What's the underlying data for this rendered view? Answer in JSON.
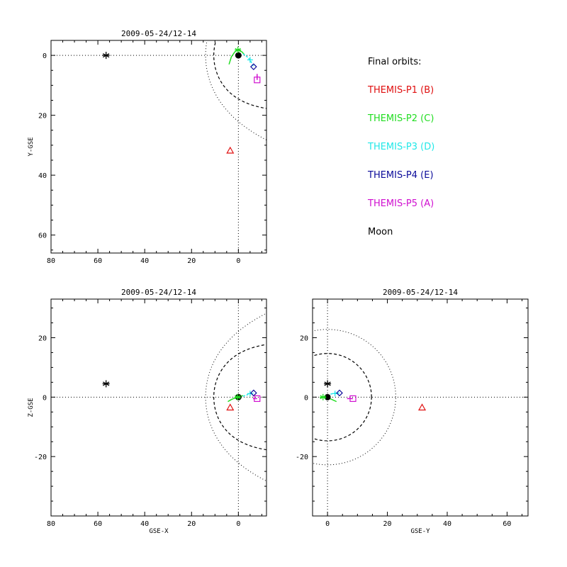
{
  "legend": {
    "heading": "Final orbits:",
    "items": [
      {
        "label": "THEMIS-P1 (B)",
        "color": "#e01010",
        "marker": "triangle"
      },
      {
        "label": "THEMIS-P2 (C)",
        "color": "#22dd22",
        "marker": "asterisk"
      },
      {
        "label": "THEMIS-P3 (D)",
        "color": "#22e8e8",
        "marker": "plus"
      },
      {
        "label": "THEMIS-P4 (E)",
        "color": "#0b0b9a",
        "marker": "diamond"
      },
      {
        "label": "THEMIS-P5 (A)",
        "color": "#d010d0",
        "marker": "square"
      },
      {
        "label": "Moon",
        "color": "#000000",
        "marker": "star"
      }
    ]
  },
  "chart_data": [
    {
      "type": "scatter",
      "panel": "top-left",
      "title": "2009-05-24/12-14",
      "xlabel": "",
      "ylabel": "Y-GSE",
      "xlim": [
        80,
        -12
      ],
      "ylim": [
        -5,
        66
      ],
      "y_reversed": true,
      "xticks": [
        80,
        60,
        40,
        20,
        0
      ],
      "xticklabels": [
        "80",
        "60",
        "40",
        "20",
        "0"
      ],
      "yticks": [
        0,
        20,
        40,
        60
      ],
      "yticklabels": [
        "0",
        "20",
        "40",
        "60"
      ],
      "earth": [
        0,
        0
      ],
      "crosshair": [
        0,
        0
      ],
      "magnetopause": {
        "standoff": 10.5,
        "flare": 0.47
      },
      "bow_shock": {
        "standoff": 14,
        "flare": 0.66
      },
      "points": [
        {
          "name": "THEMIS-P1 (B)",
          "x": 3.5,
          "y": 31.8
        },
        {
          "name": "THEMIS-P2 (C)",
          "x": 0.2,
          "y": -1.8
        },
        {
          "name": "THEMIS-P3 (D)",
          "x": -5,
          "y": 1.5
        },
        {
          "name": "THEMIS-P4 (E)",
          "x": -6.5,
          "y": 3.8
        },
        {
          "name": "THEMIS-P5 (A)",
          "x": -8,
          "y": 8.2
        },
        {
          "name": "Moon",
          "x": 56.5,
          "y": 0
        }
      ],
      "tracks": [
        {
          "name": "THEMIS-P2 (C)",
          "x": [
            4,
            3,
            1.5,
            0.2,
            -1.5,
            -2.6
          ],
          "y": [
            3,
            0.5,
            -1.2,
            -1.8,
            -1.2,
            -0.2
          ]
        },
        {
          "name": "THEMIS-P3 (D)",
          "x": [
            -2,
            -3.5,
            -5,
            -6.5
          ],
          "y": [
            -0.5,
            0.3,
            1.5,
            3.8
          ]
        },
        {
          "name": "THEMIS-P5 (A)",
          "x": [
            -8,
            -8,
            -8
          ],
          "y": [
            6.2,
            7.2,
            8.2
          ]
        }
      ]
    },
    {
      "type": "scatter",
      "panel": "bottom-left",
      "title": "2009-05-24/12-14",
      "xlabel": "GSE-X",
      "ylabel": "Z-GSE",
      "xlim": [
        80,
        -12
      ],
      "ylim": [
        -40,
        33
      ],
      "xticks": [
        80,
        60,
        40,
        20,
        0
      ],
      "xticklabels": [
        "80",
        "60",
        "40",
        "20",
        "0"
      ],
      "yticks": [
        -20,
        0,
        20
      ],
      "yticklabels": [
        "-20",
        "0",
        "20"
      ],
      "earth": [
        0,
        0
      ],
      "crosshair": [
        0,
        0
      ],
      "magnetopause": {
        "standoff": 10.5,
        "flare": 0.47
      },
      "bow_shock": {
        "standoff": 14,
        "flare": 0.66
      },
      "points": [
        {
          "name": "THEMIS-P1 (B)",
          "x": 3.5,
          "y": -3.5
        },
        {
          "name": "THEMIS-P2 (C)",
          "x": 0.3,
          "y": 0
        },
        {
          "name": "THEMIS-P3 (D)",
          "x": -5,
          "y": 1.2
        },
        {
          "name": "THEMIS-P4 (E)",
          "x": -6.5,
          "y": 1.4
        },
        {
          "name": "THEMIS-P5 (A)",
          "x": -8,
          "y": -0.5
        },
        {
          "name": "Moon",
          "x": 56.5,
          "y": 4.5
        }
      ],
      "tracks": [
        {
          "name": "THEMIS-P2 (C)",
          "x": [
            4.5,
            3,
            1.5,
            0.3,
            -1,
            -2
          ],
          "y": [
            -1.5,
            -0.8,
            -0.3,
            0,
            0.3,
            0.5
          ]
        },
        {
          "name": "THEMIS-P3 (D)",
          "x": [
            -2,
            -3.5,
            -5,
            -6.5
          ],
          "y": [
            0.3,
            0.7,
            1.2,
            1.4
          ]
        },
        {
          "name": "THEMIS-P5 (A)",
          "x": [
            -6.2,
            -7.2,
            -8
          ],
          "y": [
            -0.5,
            -0.5,
            -0.5
          ]
        }
      ]
    },
    {
      "type": "scatter",
      "panel": "bottom-right",
      "title": "2009-05-24/12-14",
      "xlabel": "GSE-Y",
      "ylabel": "",
      "xlim": [
        -5,
        67
      ],
      "ylim": [
        -40,
        33
      ],
      "xticks": [
        0,
        20,
        40,
        60
      ],
      "xticklabels": [
        "0",
        "20",
        "40",
        "60"
      ],
      "yticks": [
        -20,
        0,
        20
      ],
      "yticklabels": [
        "-20",
        "0",
        "20"
      ],
      "earth": [
        0,
        0
      ],
      "crosshair": [
        0,
        0
      ],
      "magnetopause_circle_radius": 14.7,
      "bow_shock_circle_radius": 22.8,
      "points": [
        {
          "name": "THEMIS-P1 (B)",
          "x": 31.6,
          "y": -3.5
        },
        {
          "name": "THEMIS-P2 (C)",
          "x": -1.5,
          "y": 0
        },
        {
          "name": "THEMIS-P3 (D)",
          "x": 2.5,
          "y": 1.2
        },
        {
          "name": "THEMIS-P4 (E)",
          "x": 4,
          "y": 1.4
        },
        {
          "name": "THEMIS-P5 (A)",
          "x": 8.5,
          "y": -0.5
        },
        {
          "name": "Moon",
          "x": 0,
          "y": 4.5
        }
      ],
      "tracks": [
        {
          "name": "THEMIS-P2 (C)",
          "x": [
            -2.5,
            -1.5,
            0,
            1.5,
            3
          ],
          "y": [
            -0.3,
            0,
            -0.2,
            -0.8,
            -1.5
          ]
        },
        {
          "name": "THEMIS-P3 (D)",
          "x": [
            1,
            1.8,
            2.5,
            4
          ],
          "y": [
            1,
            1.2,
            1.3,
            1.4
          ]
        },
        {
          "name": "THEMIS-P5 (A)",
          "x": [
            6.5,
            7.5,
            8.5
          ],
          "y": [
            -0.5,
            -0.5,
            -0.5
          ]
        }
      ]
    }
  ]
}
